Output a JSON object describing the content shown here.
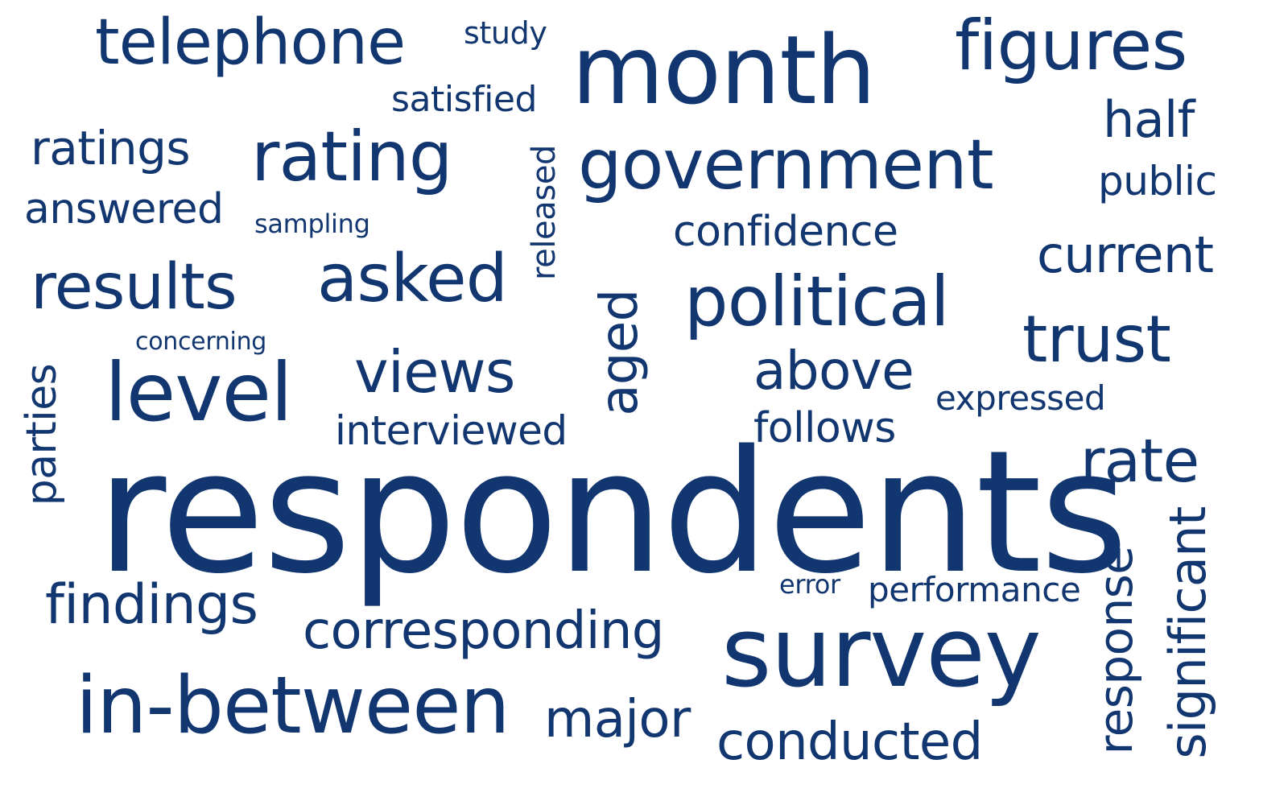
{
  "word_cloud": {
    "color": "#123670",
    "words": {
      "telephone": "telephone",
      "study": "study",
      "month": "month",
      "figures": "figures",
      "satisfied": "satisfied",
      "half": "half",
      "ratings": "ratings",
      "rating": "rating",
      "released": "released",
      "government": "government",
      "public": "public",
      "answered": "answered",
      "sampling": "sampling",
      "confidence": "confidence",
      "current": "current",
      "results": "results",
      "asked": "asked",
      "aged": "aged",
      "political": "political",
      "trust": "trust",
      "concerning": "concerning",
      "parties": "parties",
      "level": "level",
      "views": "views",
      "above": "above",
      "expressed": "expressed",
      "interviewed": "interviewed",
      "follows": "follows",
      "rate": "rate",
      "respondents": "respondents",
      "error": "error",
      "performance": "performance",
      "findings": "findings",
      "corresponding": "corresponding",
      "survey": "survey",
      "response": "response",
      "significant": "significant",
      "in_between": "in-between",
      "major": "major",
      "conducted": "conducted"
    }
  }
}
